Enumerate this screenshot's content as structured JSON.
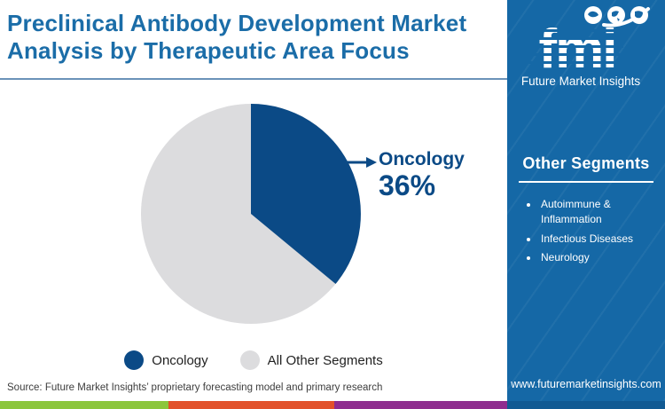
{
  "title": "Preclinical Antibody Development Market Analysis by Therapeutic Area Focus",
  "logo": {
    "monogram": "fmi",
    "tagline": "Future Market Insights"
  },
  "chart_data": {
    "type": "pie",
    "title": "Preclinical Antibody Development Market Analysis by Therapeutic Area Focus",
    "labels": [
      "Oncology",
      "All Other Segments"
    ],
    "values": [
      36,
      64
    ],
    "colors": [
      "#0b4a86",
      "#dcdcde"
    ],
    "callout": {
      "label": "Oncology",
      "value": "36%"
    },
    "legend_position": "bottom"
  },
  "legend": [
    {
      "label": "Oncology",
      "color": "#0b4a86"
    },
    {
      "label": "All Other Segments",
      "color": "#dcdcde"
    }
  ],
  "sidebar": {
    "heading": "Other Segments",
    "items": [
      "Autoimmune & Inflammation",
      "Infectious Diseases",
      "Neurology"
    ],
    "website": "www.futuremarketinsights.com"
  },
  "source": "Source: Future Market Insights’ proprietary forecasting model and primary research",
  "colors": {
    "title_blue": "#1b6da8",
    "accent_dark_blue": "#0b4a86",
    "pie_gray": "#dcdcde",
    "sidebar_blue": "#1568a6",
    "divider_blue": "#6b93b8",
    "footer_green": "#8cc63c",
    "footer_orange": "#e2512a",
    "footer_purple": "#8f2c8f",
    "footer_navy": "#115a93"
  },
  "footer_bar": {
    "colors": [
      "#8cc63c",
      "#e2512a",
      "#8f2c8f",
      "#115a93"
    ]
  }
}
